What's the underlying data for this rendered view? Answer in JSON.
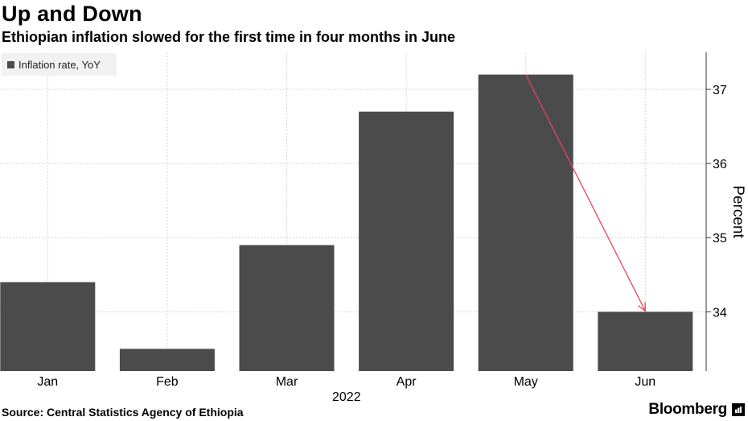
{
  "header": {
    "title": "Up and Down",
    "subtitle": "Ethiopian inflation slowed for the first time in four months in June"
  },
  "legend": {
    "label": "Inflation rate, YoY"
  },
  "footer": {
    "source": "Source: Central Statistics Agency of Ethiopia",
    "brand": "Bloomberg"
  },
  "chart_data": {
    "type": "bar",
    "title": "Up and Down",
    "subtitle": "Ethiopian inflation slowed for the first time in four months in June",
    "categories": [
      "Jan",
      "Feb",
      "Mar",
      "Apr",
      "May",
      "Jun"
    ],
    "x_group_label": "2022",
    "series": [
      {
        "name": "Inflation rate, YoY",
        "values": [
          34.4,
          33.5,
          34.9,
          36.7,
          37.2,
          34.0
        ],
        "color": "#4b4b4b"
      }
    ],
    "ylabel": "Percent",
    "yticks": [
      34,
      35,
      36,
      37
    ],
    "ylim": [
      33.2,
      37.5
    ],
    "y_axis_side": "right",
    "grid": true,
    "legend_position": "top-left",
    "annotation": {
      "type": "arrow",
      "from": "May",
      "to": "Jun",
      "color": "#e8455a"
    }
  }
}
